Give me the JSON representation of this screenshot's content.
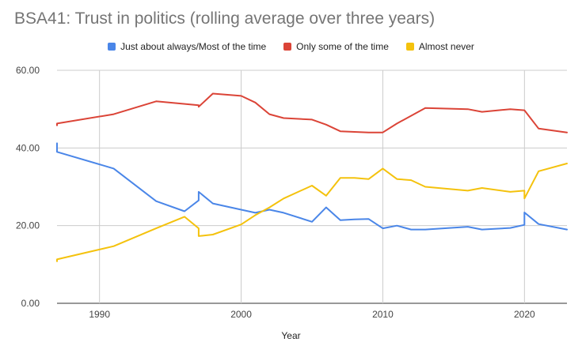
{
  "chart_data": {
    "type": "line",
    "title": "BSA41: Trust in politics (rolling average over three years)",
    "xlabel": "Year",
    "ylabel": "",
    "xlim": [
      1987,
      2023
    ],
    "ylim": [
      0,
      60
    ],
    "x_ticks": [
      "1990",
      "2000",
      "2010",
      "2020"
    ],
    "y_ticks": [
      "0.00",
      "20.00",
      "40.00",
      "60.00"
    ],
    "grid": true,
    "legend_position": "top",
    "series": [
      {
        "name": "Just about always/Most of the time",
        "color": "#4a86e8",
        "points": [
          [
            1987,
            41.2
          ],
          [
            1987,
            39.0
          ],
          [
            1991,
            34.7
          ],
          [
            1994,
            26.3
          ],
          [
            1996,
            23.7
          ],
          [
            1997,
            26.5
          ],
          [
            1997,
            28.7
          ],
          [
            1998,
            25.7
          ],
          [
            2000,
            24.1
          ],
          [
            2001,
            23.3
          ],
          [
            2002,
            24.1
          ],
          [
            2003,
            23.3
          ],
          [
            2005,
            21.0
          ],
          [
            2006,
            24.7
          ],
          [
            2007,
            21.4
          ],
          [
            2008,
            21.6
          ],
          [
            2009,
            21.7
          ],
          [
            2010,
            19.3
          ],
          [
            2011,
            20.0
          ],
          [
            2012,
            19.0
          ],
          [
            2013,
            19.0
          ],
          [
            2016,
            19.7
          ],
          [
            2017,
            19.0
          ],
          [
            2019,
            19.4
          ],
          [
            2020,
            20.2
          ],
          [
            2020,
            23.4
          ],
          [
            2021,
            20.4
          ],
          [
            2023,
            19.0
          ]
        ]
      },
      {
        "name": "Only some of the time",
        "color": "#db4437",
        "points": [
          [
            1987,
            45.8
          ],
          [
            1987,
            46.3
          ],
          [
            1991,
            48.7
          ],
          [
            1994,
            52.0
          ],
          [
            1997,
            51.0
          ],
          [
            1997,
            50.6
          ],
          [
            1998,
            54.0
          ],
          [
            2000,
            53.4
          ],
          [
            2001,
            51.7
          ],
          [
            2002,
            48.7
          ],
          [
            2003,
            47.7
          ],
          [
            2005,
            47.3
          ],
          [
            2006,
            46.0
          ],
          [
            2007,
            44.3
          ],
          [
            2009,
            44.0
          ],
          [
            2010,
            44.0
          ],
          [
            2011,
            46.3
          ],
          [
            2013,
            50.3
          ],
          [
            2016,
            50.0
          ],
          [
            2017,
            49.3
          ],
          [
            2019,
            50.0
          ],
          [
            2020,
            49.7
          ],
          [
            2021,
            45.0
          ],
          [
            2023,
            44.0
          ]
        ]
      },
      {
        "name": "Almost never",
        "color": "#f4c20d",
        "points": [
          [
            1987,
            10.8
          ],
          [
            1987,
            11.3
          ],
          [
            1991,
            14.7
          ],
          [
            1994,
            19.3
          ],
          [
            1996,
            22.3
          ],
          [
            1997,
            19.3
          ],
          [
            1997,
            17.3
          ],
          [
            1998,
            17.7
          ],
          [
            2000,
            20.3
          ],
          [
            2001,
            22.7
          ],
          [
            2002,
            24.7
          ],
          [
            2003,
            27.0
          ],
          [
            2005,
            30.3
          ],
          [
            2006,
            27.7
          ],
          [
            2007,
            32.3
          ],
          [
            2008,
            32.3
          ],
          [
            2009,
            32.0
          ],
          [
            2010,
            34.7
          ],
          [
            2011,
            32.0
          ],
          [
            2012,
            31.7
          ],
          [
            2013,
            30.0
          ],
          [
            2016,
            29.0
          ],
          [
            2017,
            29.7
          ],
          [
            2019,
            28.7
          ],
          [
            2020,
            29.0
          ],
          [
            2020,
            27.0
          ],
          [
            2021,
            34.0
          ],
          [
            2023,
            36.0
          ]
        ]
      }
    ]
  }
}
